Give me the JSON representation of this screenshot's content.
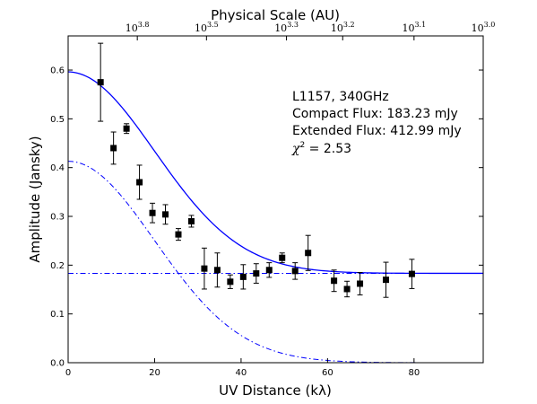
{
  "chart_data": {
    "type": "scatter",
    "xlabel": "UV Distance (kλ)",
    "ylabel": "Amplitude (Jansky)",
    "top_xlabel": "Physical Scale (AU)",
    "xlim": [
      0,
      96
    ],
    "ylim": [
      0,
      0.67
    ],
    "x_ticks": [
      0,
      20,
      40,
      60,
      80
    ],
    "x_tick_labels": [
      "0",
      "20",
      "40",
      "60",
      "80"
    ],
    "y_ticks": [
      0.0,
      0.1,
      0.2,
      0.3,
      0.4,
      0.5,
      0.6
    ],
    "y_tick_labels": [
      "0.0",
      "0.1",
      "0.2",
      "0.3",
      "0.4",
      "0.5",
      "0.6"
    ],
    "top_ticks": [
      {
        "base": "10",
        "exp": "3.8",
        "x": 16.0
      },
      {
        "base": "10",
        "exp": "3.5",
        "x": 32.0
      },
      {
        "base": "10",
        "exp": "3.3",
        "x": 50.5
      },
      {
        "base": "10",
        "exp": "3.2",
        "x": 63.5
      },
      {
        "base": "10",
        "exp": "3.1",
        "x": 80.0
      },
      {
        "base": "10",
        "exp": "3.0",
        "x": 96.0
      }
    ],
    "annotations": {
      "line1": "L1157, 340GHz",
      "line2": "Compact Flux: 183.23 mJy",
      "line3": "Extended Flux: 412.99 mJy",
      "chi_symbol": "χ",
      "chi_exp": "2",
      "chi_value": " = 2.53"
    },
    "series": [
      {
        "kind": "points",
        "color": "#000000",
        "points": [
          {
            "x": 7.5,
            "y": 0.575,
            "err": 0.08
          },
          {
            "x": 10.5,
            "y": 0.44,
            "err": 0.033
          },
          {
            "x": 13.5,
            "y": 0.48,
            "err": 0.01
          },
          {
            "x": 16.5,
            "y": 0.37,
            "err": 0.035
          },
          {
            "x": 19.5,
            "y": 0.307,
            "err": 0.02
          },
          {
            "x": 22.5,
            "y": 0.304,
            "err": 0.02
          },
          {
            "x": 25.5,
            "y": 0.263,
            "err": 0.012
          },
          {
            "x": 28.5,
            "y": 0.29,
            "err": 0.012
          },
          {
            "x": 31.5,
            "y": 0.193,
            "err": 0.042
          },
          {
            "x": 34.5,
            "y": 0.19,
            "err": 0.035
          },
          {
            "x": 37.5,
            "y": 0.166,
            "err": 0.014
          },
          {
            "x": 40.5,
            "y": 0.176,
            "err": 0.025
          },
          {
            "x": 43.5,
            "y": 0.183,
            "err": 0.02
          },
          {
            "x": 46.5,
            "y": 0.19,
            "err": 0.015
          },
          {
            "x": 49.5,
            "y": 0.215,
            "err": 0.01
          },
          {
            "x": 52.5,
            "y": 0.188,
            "err": 0.017
          },
          {
            "x": 55.5,
            "y": 0.225,
            "err": 0.036
          },
          {
            "x": 61.5,
            "y": 0.168,
            "err": 0.022
          },
          {
            "x": 64.5,
            "y": 0.151,
            "err": 0.016
          },
          {
            "x": 67.5,
            "y": 0.162,
            "err": 0.023
          },
          {
            "x": 73.5,
            "y": 0.17,
            "err": 0.036
          },
          {
            "x": 79.5,
            "y": 0.182,
            "err": 0.03
          }
        ]
      },
      {
        "kind": "model",
        "style": "solid",
        "color": "#0000ff",
        "compact": 0.18323,
        "extended": 0.41299,
        "width": 20
      },
      {
        "kind": "compact",
        "style": "dash-dot",
        "color": "#0000ff",
        "level": 0.18323
      },
      {
        "kind": "extended",
        "style": "dash-dot",
        "color": "#0000ff",
        "extended": 0.41299,
        "width": 20
      }
    ]
  }
}
